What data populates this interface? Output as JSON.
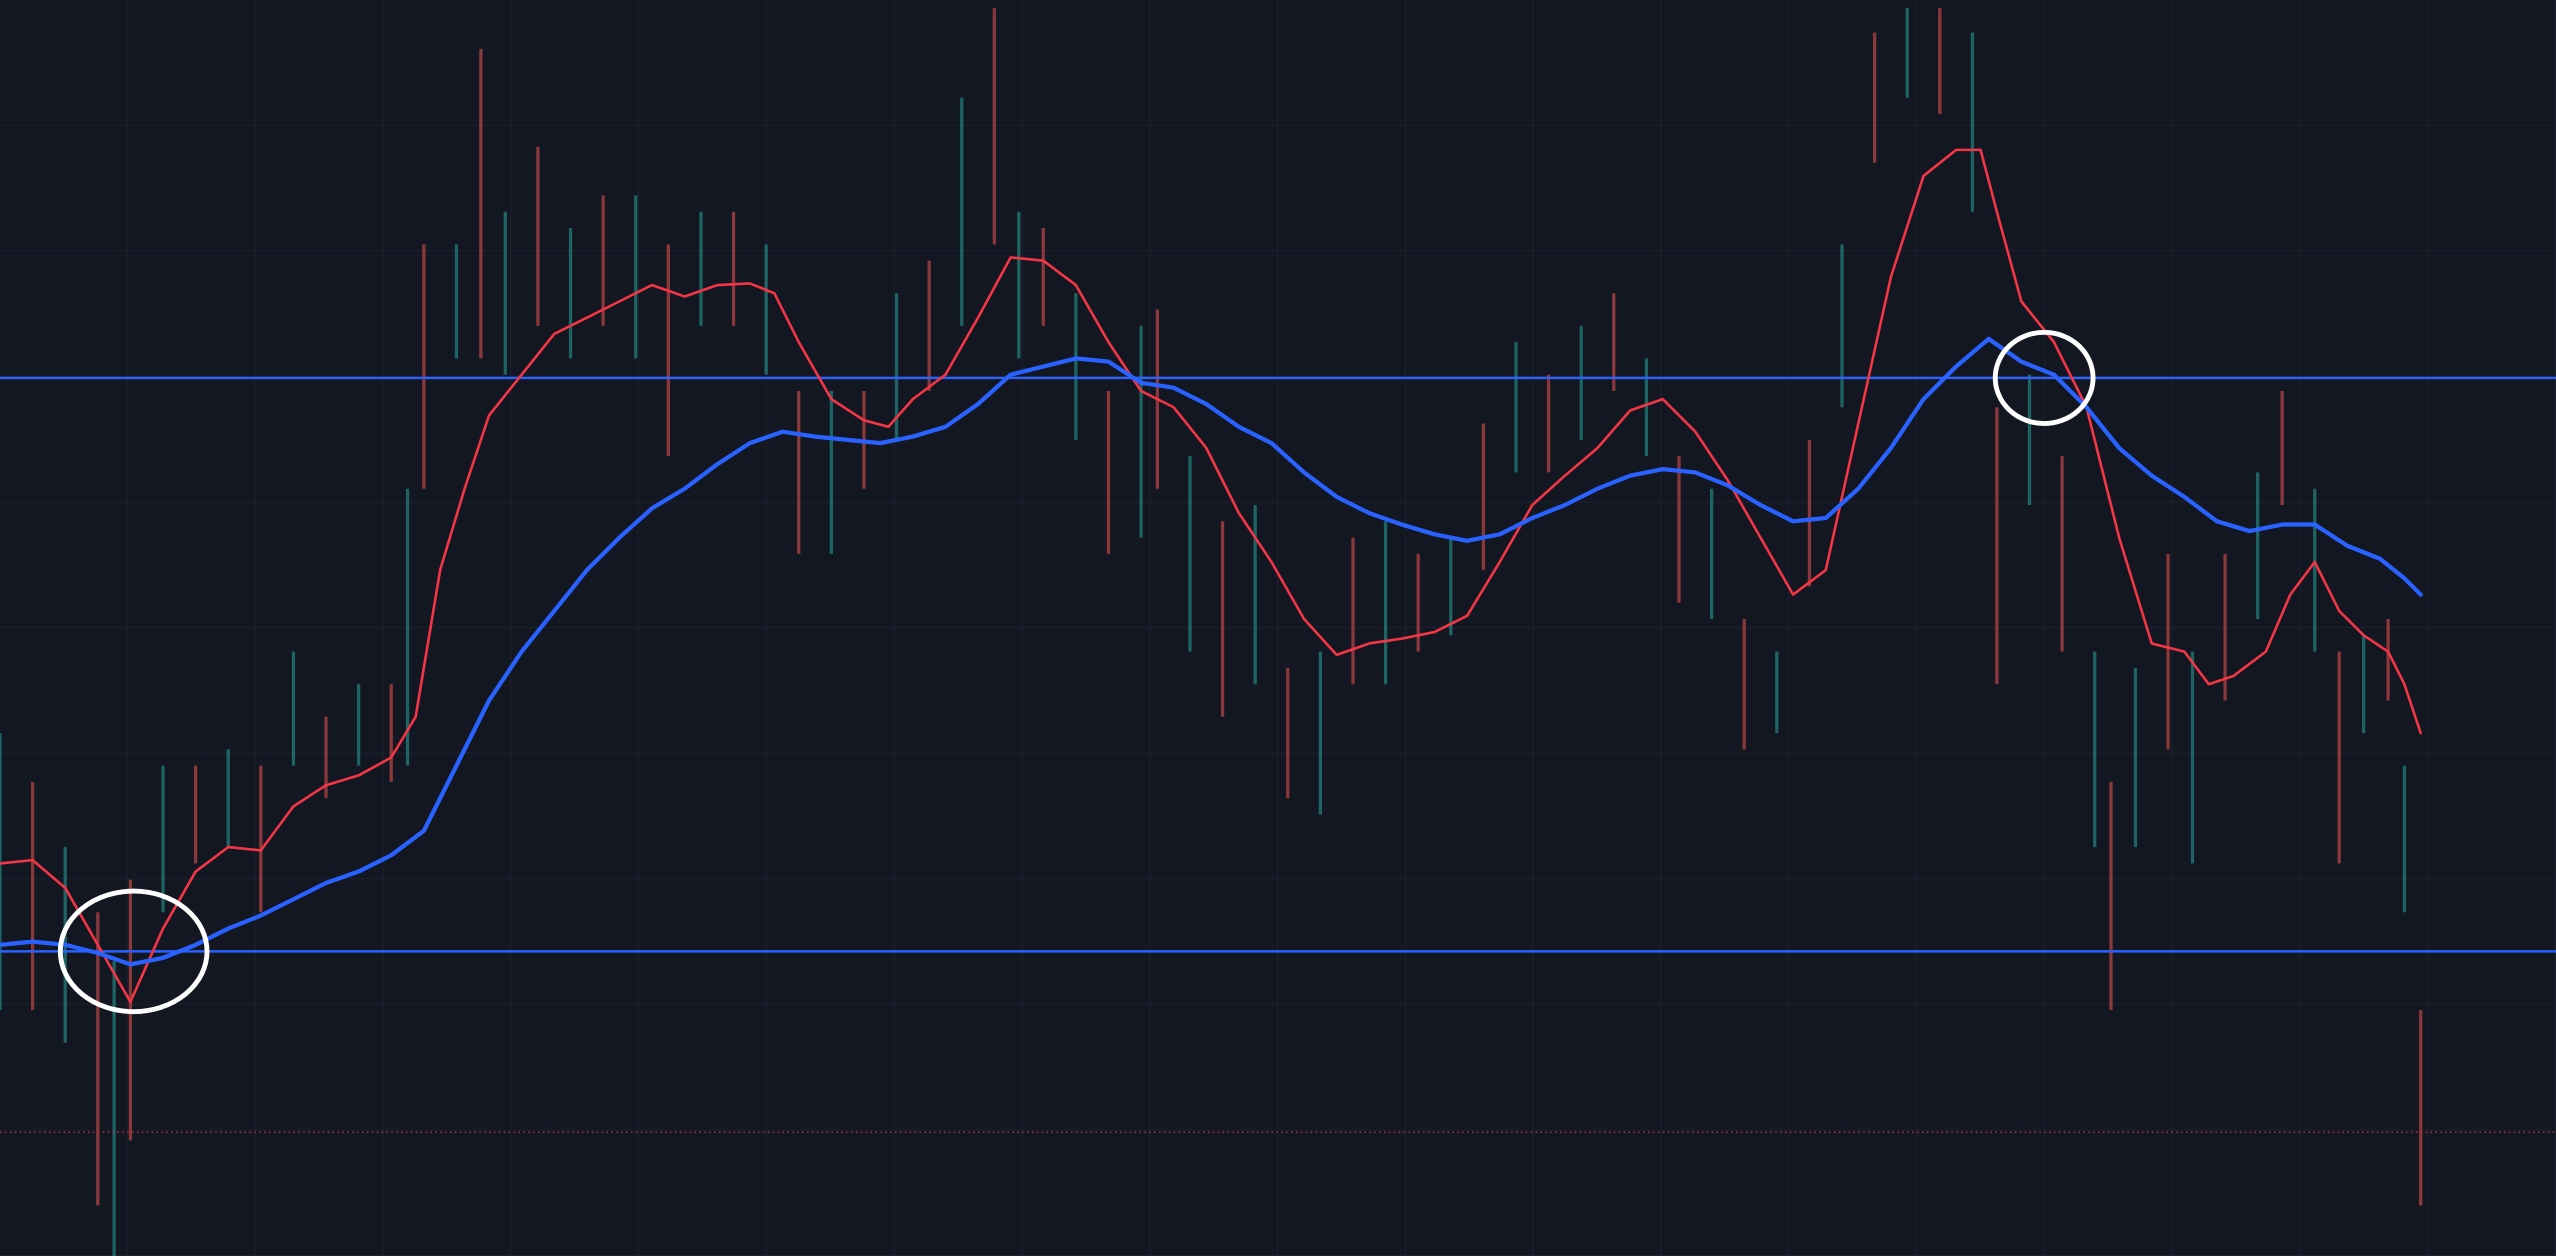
{
  "chart_data": {
    "type": "candlestick",
    "xlim": [
      0,
      1568
    ],
    "ylim": [
      0,
      771
    ],
    "grid": true,
    "candles": {
      "colors": [
        "#26a69a",
        "#ef5350"
      ],
      "x": [
        0,
        20,
        40,
        60,
        70,
        80,
        100,
        120,
        140,
        160,
        180,
        200,
        220,
        240,
        250,
        260,
        280,
        295,
        310,
        330,
        350,
        370,
        390,
        410,
        430,
        450,
        470,
        490,
        510,
        530,
        550,
        570,
        590,
        610,
        625,
        640,
        660,
        680,
        700,
        710,
        730,
        750,
        770,
        790,
        810,
        830,
        850,
        870,
        890,
        910,
        930,
        950,
        970,
        990,
        1010,
        1030,
        1050,
        1070,
        1090,
        1110,
        1130,
        1150,
        1170,
        1190,
        1210,
        1225,
        1245,
        1265,
        1285,
        1295,
        1310,
        1330,
        1345,
        1365,
        1385,
        1400,
        1420,
        1435,
        1450,
        1465,
        1475,
        1485
      ],
      "high": [
        321,
        291,
        251,
        211,
        181,
        231,
        301,
        301,
        311,
        301,
        371,
        331,
        351,
        351,
        471,
        621,
        621,
        741,
        641,
        681,
        631,
        651,
        651,
        621,
        641,
        641,
        621,
        531,
        531,
        531,
        591,
        611,
        711,
        766,
        641,
        631,
        591,
        531,
        571,
        581,
        491,
        451,
        461,
        361,
        371,
        441,
        451,
        431,
        441,
        511,
        561,
        541,
        571,
        591,
        551,
        491,
        471,
        391,
        371,
        501,
        621,
        751,
        766,
        766,
        751,
        521,
        541,
        491,
        371,
        291,
        361,
        431,
        371,
        431,
        481,
        531,
        471,
        371,
        381,
        391,
        301,
        151
      ],
      "low": [
        151,
        151,
        131,
        31,
        0,
        71,
        211,
        241,
        251,
        211,
        301,
        281,
        301,
        291,
        301,
        471,
        551,
        551,
        541,
        571,
        551,
        571,
        551,
        491,
        571,
        571,
        541,
        431,
        431,
        471,
        501,
        531,
        571,
        621,
        551,
        571,
        501,
        431,
        441,
        471,
        371,
        331,
        351,
        281,
        271,
        351,
        351,
        371,
        381,
        421,
        481,
        481,
        501,
        531,
        491,
        401,
        391,
        311,
        321,
        411,
        521,
        671,
        711,
        701,
        641,
        351,
        461,
        371,
        251,
        151,
        251,
        311,
        241,
        341,
        391,
        461,
        371,
        241,
        321,
        341,
        211,
        31
      ]
    },
    "series": [
      {
        "color": "#f23645",
        "x": [
          0,
          20,
          40,
          60,
          80,
          100,
          120,
          140,
          160,
          180,
          200,
          220,
          240,
          255,
          270,
          285,
          300,
          320,
          340,
          360,
          380,
          400,
          420,
          440,
          460,
          475,
          490,
          510,
          530,
          545,
          560,
          580,
          600,
          620,
          640,
          660,
          680,
          700,
          720,
          740,
          760,
          780,
          800,
          820,
          840,
          860,
          880,
          900,
          920,
          940,
          960,
          980,
          1000,
          1020,
          1040,
          1060,
          1080,
          1100,
          1120,
          1140,
          1160,
          1180,
          1200,
          1215,
          1225,
          1240,
          1260,
          1280,
          1300,
          1320,
          1340,
          1355,
          1370,
          1390,
          1405,
          1420,
          1435,
          1450,
          1465,
          1475,
          1485
        ],
        "values": [
          241,
          243,
          226,
          191,
          156,
          201,
          236,
          251,
          249,
          276,
          289,
          295,
          306,
          331,
          421,
          471,
          516,
          541,
          566,
          576,
          586,
          596,
          589,
          596,
          597,
          591,
          561,
          526,
          513,
          509,
          526,
          541,
          576,
          613,
          611,
          596,
          561,
          531,
          521,
          496,
          456,
          426,
          391,
          369,
          376,
          379,
          383,
          393,
          426,
          461,
          479,
          496,
          519,
          526,
          506,
          476,
          441,
          406,
          421,
          511,
          601,
          663,
          679,
          679,
          641,
          586,
          561,
          521,
          441,
          376,
          371,
          351,
          356,
          371,
          406,
          426,
          396,
          381,
          371,
          351,
          321
        ]
      },
      {
        "color": "#2962ff",
        "x": [
          0,
          20,
          40,
          60,
          80,
          100,
          120,
          140,
          160,
          180,
          200,
          220,
          240,
          260,
          280,
          300,
          320,
          340,
          360,
          380,
          400,
          420,
          440,
          460,
          480,
          500,
          520,
          540,
          560,
          580,
          600,
          620,
          640,
          660,
          680,
          700,
          720,
          740,
          760,
          780,
          800,
          820,
          840,
          860,
          880,
          900,
          920,
          940,
          960,
          980,
          1000,
          1020,
          1040,
          1060,
          1080,
          1100,
          1120,
          1140,
          1160,
          1180,
          1200,
          1220,
          1240,
          1260,
          1280,
          1300,
          1320,
          1340,
          1360,
          1380,
          1400,
          1420,
          1440,
          1460,
          1475,
          1485
        ],
        "values": [
          191,
          193,
          191,
          186,
          179,
          183,
          191,
          201,
          209,
          219,
          229,
          236,
          246,
          261,
          301,
          341,
          371,
          396,
          421,
          441,
          459,
          471,
          486,
          499,
          506,
          503,
          501,
          499,
          503,
          509,
          523,
          541,
          546,
          551,
          549,
          536,
          533,
          523,
          509,
          499,
          481,
          466,
          456,
          449,
          443,
          439,
          443,
          453,
          461,
          471,
          479,
          483,
          481,
          473,
          461,
          451,
          453,
          471,
          496,
          526,
          546,
          563,
          549,
          541,
          521,
          496,
          479,
          466,
          451,
          445,
          449,
          449,
          436,
          428,
          416,
          406
        ]
      }
    ],
    "levels": [
      {
        "value": 539,
        "color": "#2962ff",
        "style": "solid"
      },
      {
        "value": 187,
        "color": "#2962ff",
        "style": "solid"
      },
      {
        "value": 76,
        "color": "#b2353d",
        "style": "dotted"
      }
    ]
  }
}
